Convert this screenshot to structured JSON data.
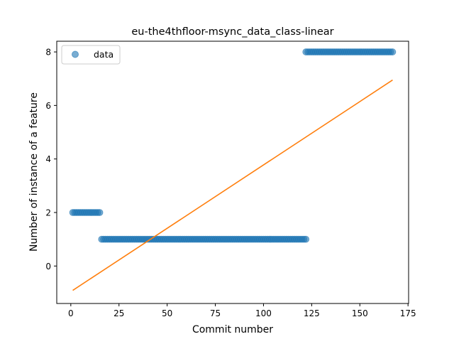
{
  "chart_data": {
    "type": "scatter",
    "title": "eu-the4thfloor-msync_data_class-linear",
    "xlabel": "Commit number",
    "ylabel": "Number of instance of a feature",
    "xlim": [
      -7.3,
      175.3
    ],
    "ylim": [
      -1.4,
      8.4
    ],
    "xticks": [
      0,
      25,
      50,
      75,
      100,
      125,
      150,
      175
    ],
    "yticks": [
      0,
      2,
      4,
      6,
      8
    ],
    "legend": {
      "position": "upper-left",
      "entries": [
        "data"
      ]
    },
    "grid": false,
    "series": [
      {
        "name": "data",
        "kind": "points",
        "color": "#1f77b4",
        "segments": [
          {
            "x_start": 1,
            "x_end": 15,
            "y": 2
          },
          {
            "x_start": 16,
            "x_end": 122,
            "y": 1
          },
          {
            "x_start": 122,
            "x_end": 167,
            "y": 8
          }
        ]
      },
      {
        "kind": "line",
        "color": "#ff7f0e",
        "x": [
          1,
          167
        ],
        "y": [
          -0.91,
          6.95
        ]
      }
    ]
  }
}
